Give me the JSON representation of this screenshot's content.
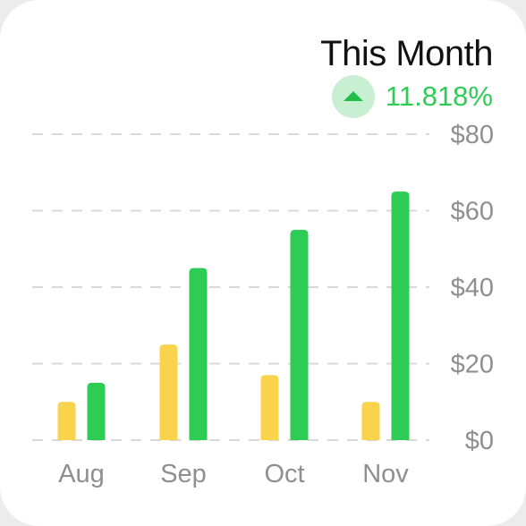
{
  "header": {
    "title": "This Month",
    "change_value": "11.818%",
    "change_icon": "triangle-up-icon"
  },
  "colors": {
    "series_a": "#f9d34c",
    "series_b": "#2ecc55",
    "grid": "#d9d9d9",
    "up": "#1fbf4a",
    "up_bg": "#c8efd1"
  },
  "chart_data": {
    "type": "bar",
    "categories": [
      "Aug",
      "Sep",
      "Oct",
      "Nov"
    ],
    "series": [
      {
        "values": [
          10,
          25,
          17,
          10
        ]
      },
      {
        "values": [
          15,
          45,
          55,
          65
        ]
      }
    ],
    "y_ticks": [
      0,
      20,
      40,
      60,
      80
    ],
    "y_tick_labels": [
      "$0",
      "$20",
      "$40",
      "$60",
      "$80"
    ],
    "ylim": [
      0,
      80
    ],
    "grid": true,
    "y_axis_position": "right"
  }
}
